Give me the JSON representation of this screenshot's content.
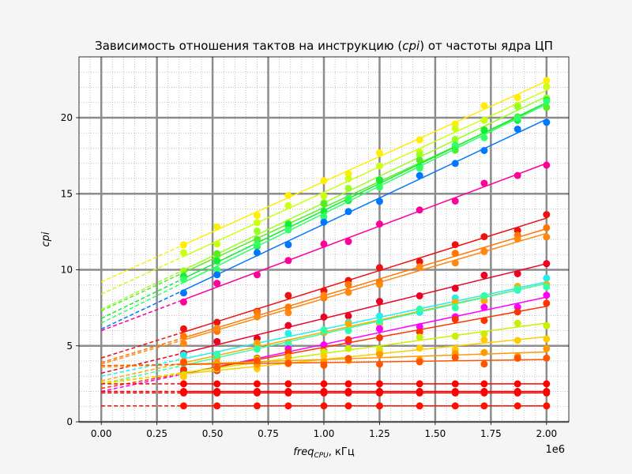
{
  "chart_data": {
    "type": "line",
    "title": "Зависимость отношения тактов на инструкцию (cpi) от частоты ядра ЦП",
    "title_prefix": "Зависимость отношения тактов на инструкцию (",
    "title_var": "cpi",
    "title_suffix": ") от частоты ядра ЦП",
    "xlabel_var": "freq",
    "xlabel_sub": "CPU",
    "xlabel_unit": ", кГц",
    "ylabel": "cpi",
    "offset_text": "1e6",
    "xlim": [
      -0.1,
      2.1
    ],
    "ylim": [
      0,
      24
    ],
    "xticks": [
      "0.00",
      "0.25",
      "0.50",
      "0.75",
      "1.00",
      "1.25",
      "1.50",
      "1.75",
      "2.00"
    ],
    "yticks": [
      "0",
      "5",
      "10",
      "15",
      "20"
    ],
    "grid": true,
    "x": [
      0.37,
      0.52,
      0.7,
      0.84,
      1.0,
      1.11,
      1.25,
      1.43,
      1.59,
      1.72,
      1.87,
      2.0
    ],
    "series": [
      {
        "color": "#ffee00",
        "intercept": 9.2,
        "slope": 6.6
      },
      {
        "color": "#ccff11",
        "intercept": 8.4,
        "slope": 6.7
      },
      {
        "color": "#99ff22",
        "intercept": 7.4,
        "slope": 7.0
      },
      {
        "color": "#55ee22",
        "intercept": 7.3,
        "slope": 6.8
      },
      {
        "color": "#11ee33",
        "intercept": 6.8,
        "slope": 7.1
      },
      {
        "color": "#33ff66",
        "intercept": 6.5,
        "slope": 7.2
      },
      {
        "color": "#0077ff",
        "intercept": 6.1,
        "slope": 6.9
      },
      {
        "color": "#ff0099",
        "intercept": 6.0,
        "slope": 5.5
      },
      {
        "color": "#ee1111",
        "intercept": 4.2,
        "slope": 4.6
      },
      {
        "color": "#ff7700",
        "intercept": 3.9,
        "slope": 4.4
      },
      {
        "color": "#ff8811",
        "intercept": 3.8,
        "slope": 4.3
      },
      {
        "color": "#ee0022",
        "intercept": 3.2,
        "slope": 3.6
      },
      {
        "color": "#22eeee",
        "intercept": 3.0,
        "slope": 3.1
      },
      {
        "color": "#ffaa00",
        "intercept": 2.7,
        "slope": 3.2
      },
      {
        "color": "#33ffaa",
        "intercept": 2.5,
        "slope": 3.3
      },
      {
        "color": "#ff00ff",
        "intercept": 2.0,
        "slope": 3.1
      },
      {
        "color": "#ff3300",
        "intercept": 2.2,
        "slope": 2.7
      },
      {
        "color": "#ccee00",
        "intercept": 2.5,
        "slope": 2.0
      },
      {
        "color": "#ffcc00",
        "intercept": 2.6,
        "slope": 1.5
      },
      {
        "color": "#ff9900",
        "intercept": 3.6,
        "slope": 0.5
      },
      {
        "color": "#ff5500",
        "intercept": 3.7,
        "slope": 0.2
      },
      {
        "color": "#ff0000",
        "intercept": 2.5,
        "slope": 0.0
      },
      {
        "color": "#ee0000",
        "intercept": 2.0,
        "slope": 0.0
      },
      {
        "color": "#ff0000",
        "intercept": 1.9,
        "slope": 0.0
      },
      {
        "color": "#ff1100",
        "intercept": 1.05,
        "slope": 0.0
      }
    ]
  }
}
